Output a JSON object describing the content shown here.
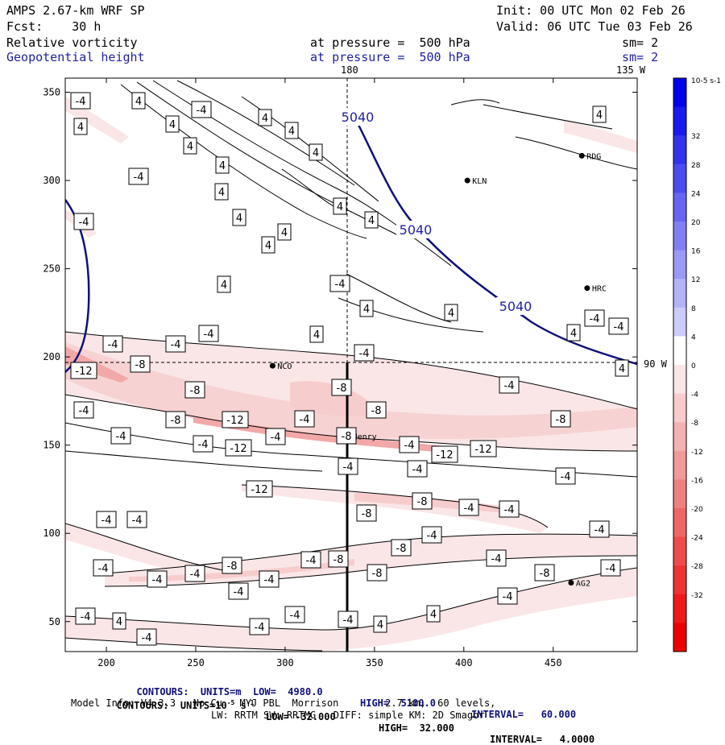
{
  "header": {
    "model": "AMPS 2.67-km WRF SP",
    "init": "Init: 00 UTC Mon 02 Feb 26",
    "fcst": "Fcst:    30 h",
    "valid": "Valid: 06 UTC Tue 03 Feb 26",
    "field1_name": "Relative vorticity",
    "field1_level": "at pressure =  500 hPa",
    "field1_sm": "sm= 2",
    "field2_name": "Geopotential height",
    "field2_level": "at pressure =  500 hPa",
    "field2_sm": "sm= 2"
  },
  "chart_data": {
    "type": "heatmap",
    "title": "Relative vorticity / Geopotential height at 500 hPa",
    "x": {
      "ticks": [
        200,
        250,
        300,
        350,
        400,
        450
      ],
      "range": [
        177,
        497
      ]
    },
    "y": {
      "ticks": [
        50,
        100,
        150,
        200,
        250,
        300,
        350
      ],
      "range": [
        33,
        358
      ]
    },
    "grid_labels": {
      "top": "180",
      "top_right": "135 W",
      "right": "90 W"
    },
    "reference_lines": {
      "vertical_x": 333,
      "horizontal_y": 195
    },
    "cross_section": {
      "x": 333,
      "y_from": 33,
      "y_to": 195
    },
    "colorbar": {
      "unit": "10-5 s-1",
      "labels": [
        "32",
        "28",
        "24",
        "20",
        "16",
        "12",
        "8",
        "4",
        "0",
        "-4",
        "-8",
        "-12",
        "-16",
        "-20",
        "-24",
        "-28",
        "-32"
      ],
      "colors": [
        "#0000ee",
        "#1a1aee",
        "#3333ee",
        "#4c4cf0",
        "#6666f2",
        "#8080f4",
        "#9999f6",
        "#b3b3f8",
        "#ccccfa",
        "#ffffff",
        "#fae6e6",
        "#f8cccc",
        "#f4b3b3",
        "#f29999",
        "#f08080",
        "#ee6666",
        "#ee4c4c",
        "#ee3333",
        "#ee1a1a",
        "#ee0000"
      ]
    },
    "stations": [
      {
        "name": "KLN",
        "x": 402,
        "y": 300
      },
      {
        "name": "RDG",
        "x": 466,
        "y": 314
      },
      {
        "name": "HRC",
        "x": 469,
        "y": 239
      },
      {
        "name": "NCO",
        "x": 293,
        "y": 195
      },
      {
        "name": "Henry",
        "x": 335,
        "y": 155
      },
      {
        "name": "AG2",
        "x": 460,
        "y": 72
      }
    ],
    "height_contour_labels": [
      "5040",
      "5040",
      "5040"
    ],
    "vorticity_contour_labels": [
      "-4",
      "4",
      "4",
      "-4",
      "4",
      "4",
      "4",
      "4",
      "-4",
      "4",
      "4",
      "4",
      "4",
      "4",
      "4",
      "-4",
      "4",
      "4",
      "-4",
      "4",
      "4",
      "4",
      "4",
      "4",
      "-4",
      "-4",
      "-4",
      "-4",
      "-12",
      "-8",
      "-4",
      "-8",
      "-8",
      "-8",
      "-4",
      "-12",
      "-8",
      "-4",
      "-4",
      "-4",
      "-4",
      "-12",
      "-8",
      "-4",
      "-4",
      "-12",
      "-12",
      "-8",
      "-4",
      "-4",
      "-4",
      "-12",
      "-8",
      "-8",
      "-4",
      "-4",
      "-4",
      "-4",
      "-8",
      "-4",
      "-4",
      "-4",
      "-8",
      "-8",
      "-4",
      "-4",
      "-4",
      "-4",
      "-8",
      "-4",
      "-8",
      "-4",
      "-4",
      "-4",
      "-4",
      "-4",
      "-4",
      "-4",
      "4",
      "-4",
      "4",
      "4",
      "4",
      "4",
      "-4",
      "-4"
    ]
  },
  "footer": {
    "line1a": "CONTOURS:  UNITS=m  LOW=  4980.0",
    "line1b": "HIGH=  5100.0",
    "line1c": "INTERVAL=   60.000",
    "line2a": "CONTOURS:  UNITS=10",
    "line2a_exp": "-5",
    "line2a_s": " s",
    "line2a_sexp": "-1",
    "line2b": "LOW= -32.000",
    "line2c": "HIGH=  32.000",
    "line2d": "INTERVAL=   4.0000",
    "line3": "Model Info: V4.3.3   No Cu   MYJ PBL  Morrison        2.7 km,  60 levels,",
    "line4": "LW: RRTM SW: RRTMG   DIFF: simple KM: 2D Smagor"
  }
}
